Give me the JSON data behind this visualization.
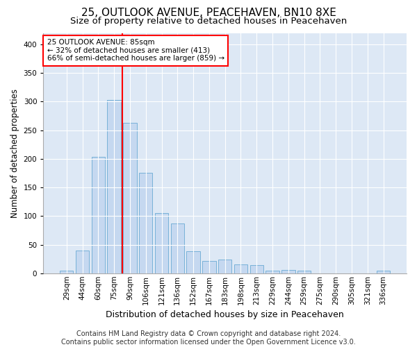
{
  "title": "25, OUTLOOK AVENUE, PEACEHAVEN, BN10 8XE",
  "subtitle": "Size of property relative to detached houses in Peacehaven",
  "xlabel": "Distribution of detached houses by size in Peacehaven",
  "ylabel": "Number of detached properties",
  "footer_line1": "Contains HM Land Registry data © Crown copyright and database right 2024.",
  "footer_line2": "Contains public sector information licensed under the Open Government Licence v3.0.",
  "bar_labels": [
    "29sqm",
    "44sqm",
    "60sqm",
    "75sqm",
    "90sqm",
    "106sqm",
    "121sqm",
    "136sqm",
    "152sqm",
    "167sqm",
    "183sqm",
    "198sqm",
    "213sqm",
    "229sqm",
    "244sqm",
    "259sqm",
    "275sqm",
    "290sqm",
    "305sqm",
    "321sqm",
    "336sqm"
  ],
  "bar_values": [
    4,
    40,
    204,
    303,
    263,
    175,
    105,
    87,
    38,
    21,
    24,
    15,
    14,
    4,
    6,
    4,
    0,
    0,
    0,
    0,
    4
  ],
  "bar_color": "#c5d8f0",
  "bar_edge_color": "#6aaad4",
  "vline_color": "red",
  "vline_x_index": 3.5,
  "ylim": [
    0,
    420
  ],
  "yticks": [
    0,
    50,
    100,
    150,
    200,
    250,
    300,
    350,
    400
  ],
  "annotation_text": "25 OUTLOOK AVENUE: 85sqm\n← 32% of detached houses are smaller (413)\n66% of semi-detached houses are larger (859) →",
  "annotation_box_color": "white",
  "annotation_box_edge_color": "red",
  "bg_color": "#ffffff",
  "plot_bg_color": "#dde8f5",
  "grid_color": "#ffffff",
  "title_fontsize": 11,
  "subtitle_fontsize": 9.5,
  "ylabel_fontsize": 8.5,
  "xlabel_fontsize": 9,
  "tick_fontsize": 7.5,
  "annotation_fontsize": 7.5,
  "footer_fontsize": 7
}
